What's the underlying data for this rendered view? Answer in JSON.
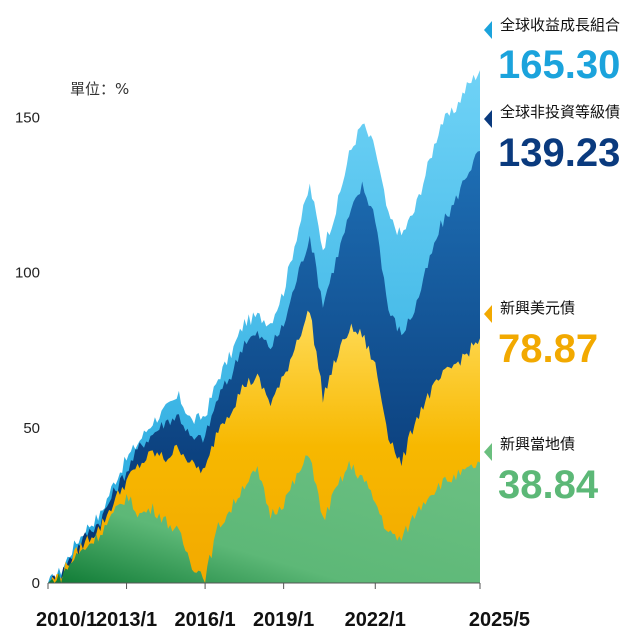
{
  "chart_data": {
    "type": "area",
    "unit_label": "單位：%",
    "y_ticks": [
      "0",
      "50",
      "100",
      "150"
    ],
    "x_ticks": [
      "2010/1",
      "2013/1",
      "2016/1",
      "2019/1",
      "2022/1",
      "2025/5"
    ],
    "ylim": [
      0,
      175
    ],
    "x": [
      "2010/1",
      "2010/7",
      "2011/1",
      "2011/7",
      "2012/1",
      "2012/7",
      "2013/1",
      "2013/7",
      "2014/1",
      "2014/7",
      "2015/1",
      "2015/7",
      "2016/1",
      "2016/7",
      "2017/1",
      "2017/7",
      "2018/1",
      "2018/7",
      "2019/1",
      "2019/7",
      "2020/1",
      "2020/4",
      "2020/7",
      "2021/1",
      "2021/7",
      "2022/1",
      "2022/4",
      "2022/10",
      "2023/1",
      "2023/7",
      "2024/1",
      "2024/7",
      "2025/1",
      "2025/5"
    ],
    "series": [
      {
        "name": "全球收益成長組合",
        "final_value": "165.30",
        "color": "#5cc8f0",
        "values": [
          0,
          4,
          12,
          18,
          22,
          32,
          40,
          46,
          52,
          56,
          60,
          52,
          54,
          66,
          74,
          84,
          86,
          84,
          94,
          112,
          128,
          108,
          120,
          138,
          148,
          140,
          118,
          112,
          120,
          134,
          148,
          152,
          160,
          165.3
        ]
      },
      {
        "name": "全球非投資等級債",
        "final_value": "139.23",
        "color": "#063f86",
        "values": [
          0,
          3,
          10,
          16,
          20,
          29,
          36,
          44,
          48,
          52,
          54,
          46,
          47,
          60,
          67,
          78,
          80,
          76,
          83,
          98,
          112,
          90,
          104,
          118,
          128,
          118,
          88,
          80,
          88,
          102,
          115,
          122,
          132,
          139.23
        ]
      },
      {
        "name": "新興美元債",
        "final_value": "78.87",
        "color": "#f5b400",
        "values": [
          0,
          3,
          9,
          14,
          18,
          26,
          33,
          38,
          42,
          40,
          44,
          38,
          36,
          50,
          56,
          64,
          66,
          58,
          66,
          78,
          88,
          60,
          72,
          82,
          80,
          70,
          48,
          38,
          52,
          60,
          66,
          70,
          74,
          78.87
        ]
      },
      {
        "name": "新興當地債",
        "final_value": "38.84",
        "color": "#6abf7e",
        "values": [
          0,
          2,
          8,
          12,
          16,
          22,
          28,
          22,
          24,
          20,
          16,
          6,
          2,
          18,
          24,
          32,
          36,
          22,
          26,
          34,
          42,
          20,
          30,
          38,
          34,
          26,
          16,
          14,
          22,
          28,
          32,
          34,
          36,
          38.84
        ]
      }
    ]
  }
}
